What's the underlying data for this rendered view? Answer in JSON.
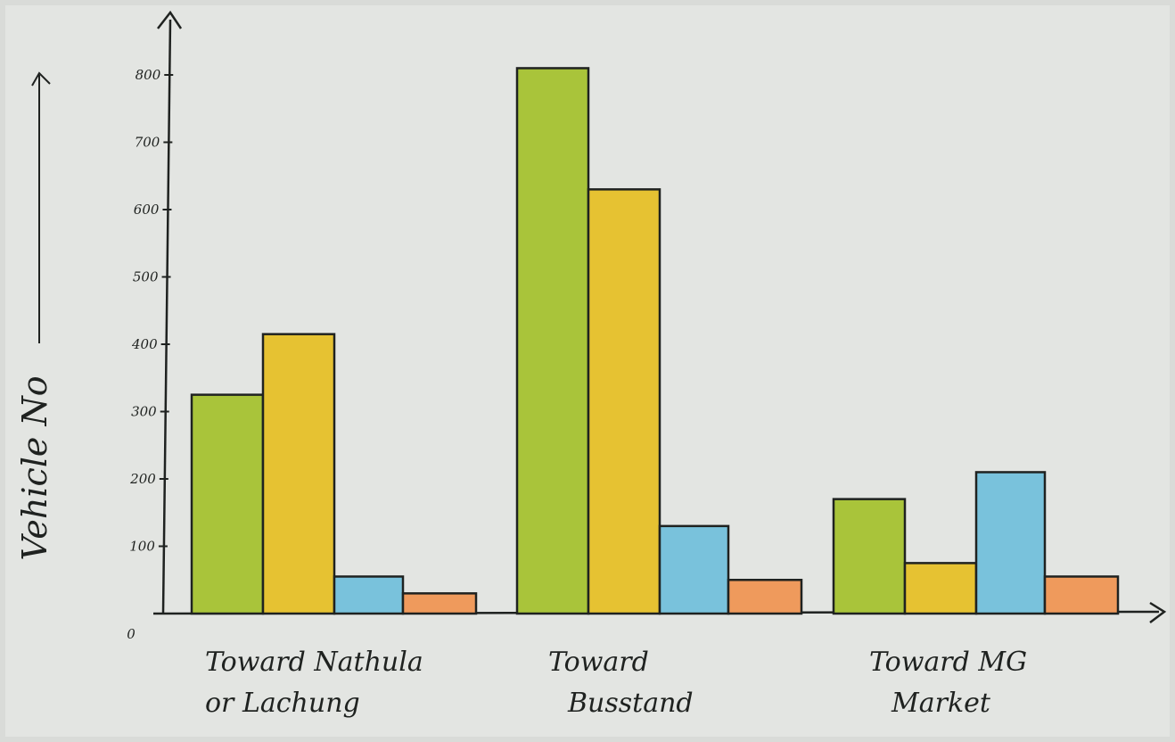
{
  "chart_data": {
    "type": "bar",
    "title": "",
    "xlabel": "",
    "ylabel": "Vehicle No",
    "ylim": [
      0,
      800
    ],
    "yticks": [
      0,
      100,
      200,
      300,
      400,
      500,
      600,
      700,
      800
    ],
    "ytick_labels": [
      "0",
      "100",
      "200",
      "300",
      "400",
      "500",
      "600",
      "700",
      "800"
    ],
    "categories": [
      [
        "Toward Nathula",
        "or Lachung"
      ],
      [
        "Toward",
        "Busstand"
      ],
      [
        "Toward MG",
        "Market"
      ]
    ],
    "series": [
      {
        "color": "#a9c43a",
        "values": [
          325,
          810,
          170
        ]
      },
      {
        "color": "#e6c232",
        "values": [
          415,
          630,
          75
        ]
      },
      {
        "color": "#79c2dc",
        "values": [
          55,
          130,
          210
        ]
      },
      {
        "color": "#ef9a5c",
        "values": [
          30,
          50,
          55
        ]
      }
    ],
    "grid": false,
    "legend": "none"
  }
}
